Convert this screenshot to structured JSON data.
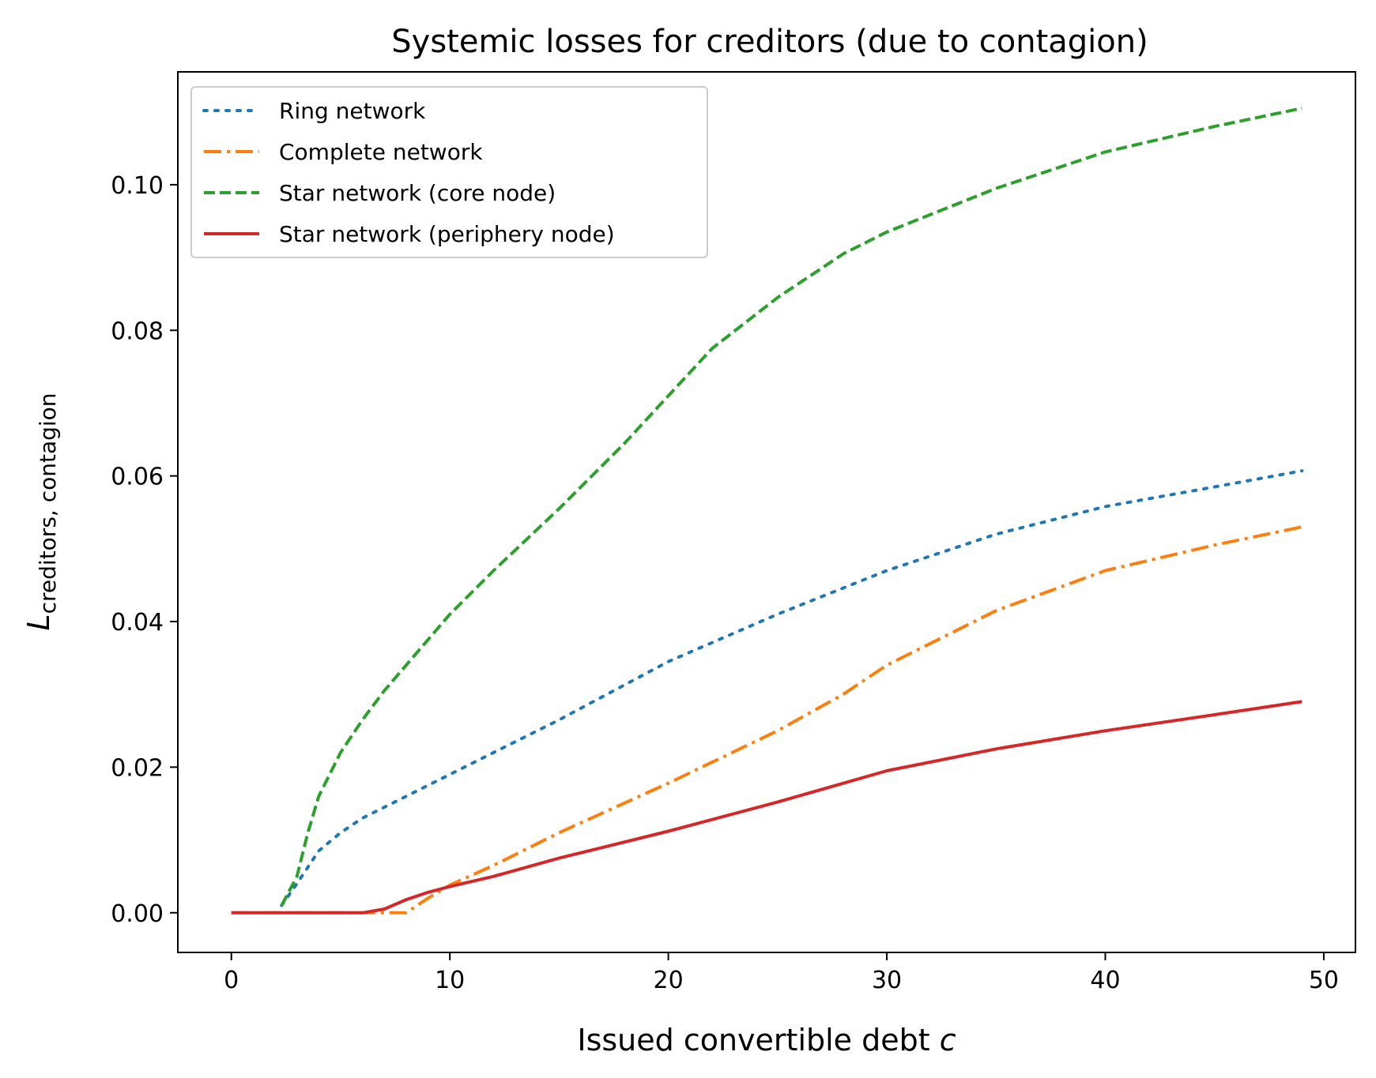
{
  "chart_data": {
    "type": "line",
    "title": "Systemic losses for creditors (due to contagion)",
    "xlabel": {
      "main": "Issued convertible debt ",
      "italic": "c"
    },
    "ylabel": {
      "main": "L",
      "sub": "creditors, contagion"
    },
    "xlim": [
      -2.45,
      51.45
    ],
    "ylim": [
      -0.00545,
      0.1155
    ],
    "xticks": [
      0,
      10,
      20,
      30,
      40,
      50
    ],
    "xtick_labels": [
      "0",
      "10",
      "20",
      "30",
      "40",
      "50"
    ],
    "yticks": [
      0.0,
      0.02,
      0.04,
      0.06,
      0.08,
      0.1
    ],
    "ytick_labels": [
      "0.00",
      "0.02",
      "0.04",
      "0.06",
      "0.08",
      "0.10"
    ],
    "grid": false,
    "legend_position": "top-left",
    "series": [
      {
        "name": "Ring network",
        "color": "#1f77b4",
        "dash": "dotted",
        "points": [
          [
            2.3,
            0.001
          ],
          [
            3,
            0.004
          ],
          [
            4,
            0.0085
          ],
          [
            5,
            0.011
          ],
          [
            6,
            0.013
          ],
          [
            8,
            0.016
          ],
          [
            10,
            0.019
          ],
          [
            12,
            0.022
          ],
          [
            15,
            0.0265
          ],
          [
            20,
            0.0345
          ],
          [
            25,
            0.041
          ],
          [
            30,
            0.047
          ],
          [
            35,
            0.052
          ],
          [
            40,
            0.0558
          ],
          [
            45,
            0.0585
          ],
          [
            49,
            0.0607
          ]
        ]
      },
      {
        "name": "Complete network",
        "color": "#ff7f0e",
        "dash": "dashdot",
        "points": [
          [
            0,
            0
          ],
          [
            6,
            0
          ],
          [
            7,
            0
          ],
          [
            8,
            0
          ],
          [
            9,
            0.002
          ],
          [
            10,
            0.0038
          ],
          [
            12,
            0.0065
          ],
          [
            15,
            0.011
          ],
          [
            20,
            0.0178
          ],
          [
            25,
            0.025
          ],
          [
            28,
            0.03
          ],
          [
            30,
            0.034
          ],
          [
            35,
            0.0415
          ],
          [
            40,
            0.047
          ],
          [
            45,
            0.0505
          ],
          [
            49,
            0.053
          ]
        ]
      },
      {
        "name": "Star network (core node)",
        "color": "#2ca02c",
        "dash": "dashed",
        "points": [
          [
            2.3,
            0.001
          ],
          [
            3,
            0.005
          ],
          [
            3.5,
            0.011
          ],
          [
            4,
            0.016
          ],
          [
            5,
            0.022
          ],
          [
            6,
            0.0265
          ],
          [
            7,
            0.0305
          ],
          [
            8,
            0.034
          ],
          [
            10,
            0.041
          ],
          [
            12,
            0.047
          ],
          [
            15,
            0.0555
          ],
          [
            18,
            0.0645
          ],
          [
            20,
            0.071
          ],
          [
            22,
            0.0775
          ],
          [
            25,
            0.0845
          ],
          [
            28,
            0.0905
          ],
          [
            30,
            0.0935
          ],
          [
            35,
            0.0995
          ],
          [
            40,
            0.1045
          ],
          [
            45,
            0.108
          ],
          [
            49,
            0.1105
          ]
        ]
      },
      {
        "name": "Star network (periphery node)",
        "color": "#d62728",
        "dash": "solid",
        "points": [
          [
            0,
            0
          ],
          [
            2,
            0
          ],
          [
            4,
            0
          ],
          [
            6,
            0
          ],
          [
            7,
            0.0005
          ],
          [
            8,
            0.0018
          ],
          [
            9,
            0.0028
          ],
          [
            10,
            0.0036
          ],
          [
            12,
            0.005
          ],
          [
            15,
            0.0075
          ],
          [
            20,
            0.0112
          ],
          [
            25,
            0.0152
          ],
          [
            30,
            0.0195
          ],
          [
            35,
            0.0225
          ],
          [
            40,
            0.025
          ],
          [
            45,
            0.0272
          ],
          [
            49,
            0.029
          ]
        ]
      }
    ]
  }
}
